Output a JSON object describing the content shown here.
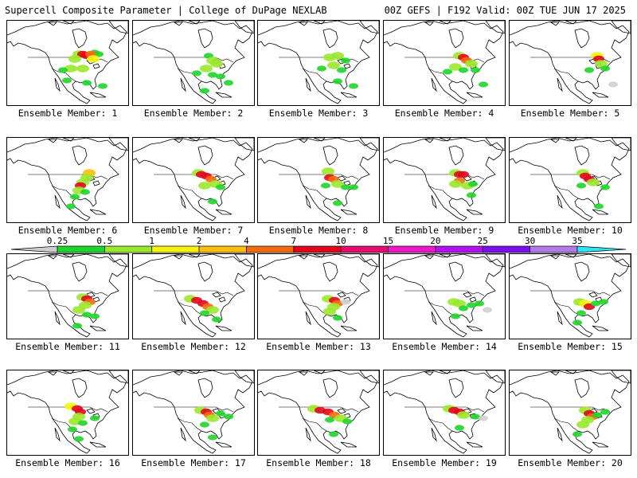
{
  "header": {
    "title": "Supercell Composite Parameter | College of DuPage NEXLAB",
    "run_info": "00Z GEFS | F192 Valid: 00Z TUE JUN 17 2025"
  },
  "colorbar": {
    "levels": [
      "0.25",
      "0.5",
      "1",
      "2",
      "4",
      "7",
      "10",
      "15",
      "20",
      "25",
      "30",
      "35"
    ],
    "colors": [
      "#cfcfcf",
      "#1fd42a",
      "#9be82c",
      "#f4f40f",
      "#fcbf0f",
      "#f46a0f",
      "#e2051b",
      "#e80a70",
      "#f016c8",
      "#b212f2",
      "#7c0ff0",
      "#b27ae8",
      "#2ee4f0"
    ]
  },
  "members": [
    {
      "label": "Ensemble Member: 1",
      "cells": [
        [
          110,
          40,
          1
        ],
        [
          115,
          42,
          1
        ],
        [
          90,
          42,
          2
        ],
        [
          95,
          42,
          6
        ],
        [
          100,
          44,
          6
        ],
        [
          105,
          42,
          5
        ],
        [
          108,
          48,
          3
        ],
        [
          85,
          48,
          2
        ],
        [
          80,
          60,
          2
        ],
        [
          70,
          62,
          1
        ],
        [
          95,
          60,
          2
        ],
        [
          75,
          75,
          1
        ],
        [
          100,
          78,
          1
        ],
        [
          120,
          82,
          1
        ]
      ]
    },
    {
      "label": "Ensemble Member: 2",
      "cells": [
        [
          95,
          44,
          1
        ],
        [
          100,
          50,
          2
        ],
        [
          105,
          54,
          2
        ],
        [
          92,
          60,
          2
        ],
        [
          100,
          68,
          1
        ],
        [
          110,
          70,
          1
        ],
        [
          80,
          66,
          1
        ],
        [
          120,
          78,
          1
        ],
        [
          90,
          88,
          1
        ]
      ]
    },
    {
      "label": "Ensemble Member: 3",
      "cells": [
        [
          90,
          46,
          2
        ],
        [
          100,
          44,
          2
        ],
        [
          110,
          50,
          1
        ],
        [
          95,
          56,
          2
        ],
        [
          105,
          62,
          1
        ],
        [
          80,
          60,
          1
        ],
        [
          100,
          76,
          1
        ],
        [
          120,
          82,
          1
        ]
      ]
    },
    {
      "label": "Ensemble Member: 4",
      "cells": [
        [
          95,
          44,
          2
        ],
        [
          100,
          46,
          6
        ],
        [
          104,
          50,
          5
        ],
        [
          110,
          54,
          2
        ],
        [
          90,
          58,
          2
        ],
        [
          100,
          62,
          1
        ],
        [
          115,
          62,
          1
        ],
        [
          80,
          64,
          1
        ],
        [
          125,
          80,
          1
        ]
      ]
    },
    {
      "label": "Ensemble Member: 5",
      "cells": [
        [
          110,
          44,
          3
        ],
        [
          112,
          48,
          6
        ],
        [
          115,
          54,
          2
        ],
        [
          100,
          62,
          1
        ],
        [
          120,
          60,
          1
        ],
        [
          130,
          80,
          0
        ]
      ]
    },
    {
      "label": "Ensemble Member: 6",
      "cells": [
        [
          103,
          44,
          4
        ],
        [
          100,
          50,
          2
        ],
        [
          95,
          56,
          2
        ],
        [
          92,
          60,
          6
        ],
        [
          90,
          66,
          2
        ],
        [
          98,
          68,
          1
        ],
        [
          85,
          74,
          1
        ],
        [
          80,
          86,
          1
        ]
      ]
    },
    {
      "label": "Ensemble Member: 7",
      "cells": [
        [
          82,
          44,
          2
        ],
        [
          86,
          46,
          6
        ],
        [
          92,
          48,
          6
        ],
        [
          98,
          52,
          5
        ],
        [
          104,
          58,
          2
        ],
        [
          110,
          62,
          1
        ],
        [
          90,
          60,
          2
        ],
        [
          100,
          80,
          1
        ]
      ]
    },
    {
      "label": "Ensemble Member: 8",
      "cells": [
        [
          88,
          42,
          2
        ],
        [
          90,
          50,
          6
        ],
        [
          95,
          52,
          5
        ],
        [
          100,
          58,
          2
        ],
        [
          110,
          62,
          1
        ],
        [
          85,
          60,
          1
        ],
        [
          120,
          62,
          1
        ],
        [
          100,
          82,
          1
        ]
      ]
    },
    {
      "label": "Ensemble Member: 9",
      "cells": [
        [
          90,
          44,
          2
        ],
        [
          95,
          46,
          6
        ],
        [
          100,
          46,
          6
        ],
        [
          95,
          54,
          5
        ],
        [
          90,
          58,
          2
        ],
        [
          105,
          60,
          2
        ],
        [
          112,
          58,
          1
        ],
        [
          110,
          72,
          1
        ]
      ]
    },
    {
      "label": "Ensemble Member: 10",
      "cells": [
        [
          92,
          44,
          2
        ],
        [
          95,
          48,
          6
        ],
        [
          100,
          52,
          6
        ],
        [
          105,
          56,
          2
        ],
        [
          90,
          60,
          1
        ],
        [
          120,
          62,
          1
        ],
        [
          112,
          86,
          1
        ]
      ]
    },
    {
      "label": "Ensemble Member: 11",
      "cells": [
        [
          95,
          54,
          2
        ],
        [
          100,
          56,
          6
        ],
        [
          104,
          60,
          5
        ],
        [
          98,
          64,
          2
        ],
        [
          90,
          70,
          2
        ],
        [
          100,
          76,
          1
        ],
        [
          110,
          78,
          1
        ],
        [
          88,
          90,
          1
        ]
      ]
    },
    {
      "label": "Ensemble Member: 12",
      "cells": [
        [
          72,
          56,
          2
        ],
        [
          80,
          58,
          6
        ],
        [
          88,
          62,
          6
        ],
        [
          94,
          66,
          5
        ],
        [
          100,
          70,
          2
        ],
        [
          90,
          74,
          1
        ],
        [
          105,
          82,
          1
        ]
      ]
    },
    {
      "label": "Ensemble Member: 13",
      "cells": [
        [
          88,
          56,
          2
        ],
        [
          96,
          58,
          6
        ],
        [
          100,
          62,
          5
        ],
        [
          95,
          66,
          2
        ],
        [
          90,
          72,
          2
        ],
        [
          110,
          60,
          0
        ],
        [
          100,
          80,
          1
        ]
      ]
    },
    {
      "label": "Ensemble Member: 14",
      "cells": [
        [
          88,
          60,
          2
        ],
        [
          95,
          62,
          2
        ],
        [
          100,
          68,
          1
        ],
        [
          110,
          64,
          1
        ],
        [
          120,
          62,
          1
        ],
        [
          90,
          78,
          1
        ],
        [
          130,
          70,
          0
        ]
      ]
    },
    {
      "label": "Ensemble Member: 15",
      "cells": [
        [
          88,
          60,
          2
        ],
        [
          95,
          62,
          3
        ],
        [
          100,
          66,
          6
        ],
        [
          108,
          62,
          1
        ],
        [
          118,
          60,
          1
        ],
        [
          90,
          74,
          1
        ],
        [
          85,
          86,
          1
        ]
      ]
    },
    {
      "label": "Ensemble Member: 16",
      "cells": [
        [
          80,
          45,
          3
        ],
        [
          88,
          48,
          6
        ],
        [
          92,
          52,
          6
        ],
        [
          90,
          58,
          2
        ],
        [
          85,
          64,
          2
        ],
        [
          95,
          66,
          1
        ],
        [
          82,
          74,
          1
        ],
        [
          90,
          86,
          1
        ],
        [
          110,
          60,
          1
        ]
      ]
    },
    {
      "label": "Ensemble Member: 17",
      "cells": [
        [
          85,
          50,
          2
        ],
        [
          92,
          52,
          6
        ],
        [
          96,
          56,
          5
        ],
        [
          100,
          60,
          2
        ],
        [
          110,
          54,
          1
        ],
        [
          120,
          58,
          1
        ],
        [
          90,
          68,
          1
        ],
        [
          100,
          84,
          1
        ]
      ]
    },
    {
      "label": "Ensemble Member: 18",
      "cells": [
        [
          70,
          48,
          2
        ],
        [
          78,
          50,
          6
        ],
        [
          88,
          52,
          6
        ],
        [
          96,
          56,
          5
        ],
        [
          104,
          60,
          2
        ],
        [
          90,
          62,
          1
        ],
        [
          112,
          64,
          1
        ],
        [
          95,
          80,
          1
        ]
      ]
    },
    {
      "label": "Ensemble Member: 19",
      "cells": [
        [
          82,
          48,
          2
        ],
        [
          88,
          50,
          6
        ],
        [
          95,
          52,
          6
        ],
        [
          100,
          56,
          2
        ],
        [
          115,
          58,
          1
        ],
        [
          125,
          60,
          0
        ],
        [
          95,
          72,
          1
        ]
      ]
    },
    {
      "label": "Ensemble Member: 20",
      "cells": [
        [
          95,
          50,
          2
        ],
        [
          100,
          54,
          6
        ],
        [
          104,
          58,
          5
        ],
        [
          98,
          62,
          2
        ],
        [
          92,
          68,
          2
        ],
        [
          110,
          56,
          1
        ],
        [
          120,
          52,
          1
        ],
        [
          85,
          80,
          1
        ]
      ]
    }
  ]
}
